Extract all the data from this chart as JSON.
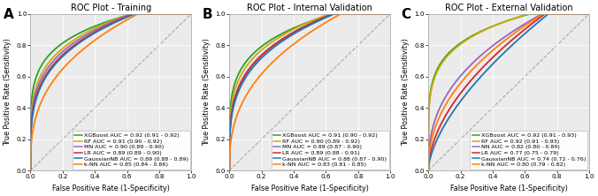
{
  "panels": [
    {
      "label": "A",
      "title": "ROC Plot - Training",
      "curves": [
        {
          "name": "XGBoost AUC = 0.92 (0.91 - 0.92)",
          "color": "#2ca02c",
          "auc": 0.92,
          "p": 0.18
        },
        {
          "name": "RF AUC = 0.91 (0.90 - 0.92)",
          "color": "#d4a800",
          "auc": 0.91,
          "p": 0.22
        },
        {
          "name": "MN AUC = 0.90 (0.89 - 0.90)",
          "color": "#9467bd",
          "auc": 0.9,
          "p": 0.24
        },
        {
          "name": "LR AUC = 0.89 (0.89 - 0.90)",
          "color": "#d62728",
          "auc": 0.89,
          "p": 0.26
        },
        {
          "name": "GaussianNB AUC = 0.89 (0.88 - 0.89)",
          "color": "#1f77b4",
          "auc": 0.885,
          "p": 0.27
        },
        {
          "name": "k-NN AUC = 0.85 (0.84 - 0.86)",
          "color": "#ff7f0e",
          "auc": 0.85,
          "p": 0.36
        }
      ]
    },
    {
      "label": "B",
      "title": "ROC Plot - Internal Validation",
      "curves": [
        {
          "name": "XGBoost AUC = 0.91 (0.90 - 0.92)",
          "color": "#2ca02c",
          "auc": 0.91,
          "p": 0.2
        },
        {
          "name": "RF AUC = 0.90 (0.89 - 0.92)",
          "color": "#d4a800",
          "auc": 0.905,
          "p": 0.23
        },
        {
          "name": "MN AUC = 0.89 (0.87 - 0.90)",
          "color": "#9467bd",
          "auc": 0.89,
          "p": 0.26
        },
        {
          "name": "LR AUC = 0.89 (0.88 - 0.91)",
          "color": "#d62728",
          "auc": 0.888,
          "p": 0.265
        },
        {
          "name": "GaussianNB AUC = 0.88 (0.87 - 0.90)",
          "color": "#1f77b4",
          "auc": 0.88,
          "p": 0.28
        },
        {
          "name": "k-NN AUC = 0.83 (0.81 - 0.85)",
          "color": "#ff7f0e",
          "auc": 0.83,
          "p": 0.39
        }
      ]
    },
    {
      "label": "C",
      "title": "ROC Plot - External Validation",
      "curves": [
        {
          "name": "XGBoost AUC = 0.92 (0.91 - 0.93)",
          "color": "#2ca02c",
          "auc": 0.92,
          "p": 0.18
        },
        {
          "name": "RF AUC = 0.92 (0.91 - 0.93)",
          "color": "#d4a800",
          "auc": 0.919,
          "p": 0.19
        },
        {
          "name": "NN AUC = 0.82 (0.80 - 0.84)",
          "color": "#9467bd",
          "auc": 0.82,
          "p": 0.4
        },
        {
          "name": "LR AUC = 0.77 (0.75 - 0.79)",
          "color": "#d62728",
          "auc": 0.77,
          "p": 0.55
        },
        {
          "name": "GaussianNB AUC = 0.74 (0.72 - 0.76)",
          "color": "#1f77b4",
          "auc": 0.74,
          "p": 0.62
        },
        {
          "name": "k-NN AUC = 0.80 (0.79 - 0.82)",
          "color": "#ff7f0e",
          "auc": 0.8,
          "p": 0.46
        }
      ]
    }
  ],
  "xlabel": "False Positive Rate (1-Specificity)",
  "ylabel": "True Positive Rate (Sensitivity)",
  "bg_color": "#ebebeb",
  "legend_fontsize": 4.6,
  "title_fontsize": 7.0,
  "axis_fontsize": 5.8,
  "tick_fontsize": 5.2,
  "panel_label_fontsize": 11,
  "lw": 1.3
}
